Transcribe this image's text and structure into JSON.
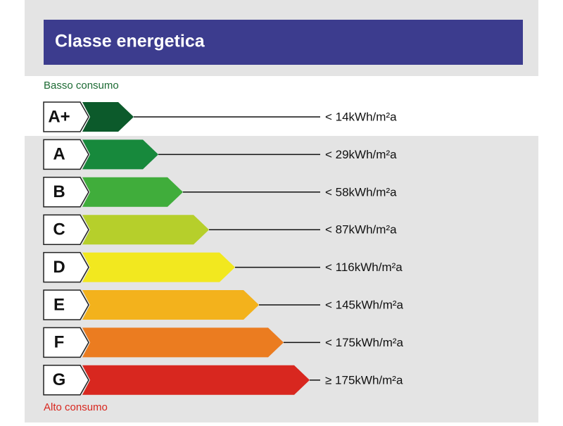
{
  "header": {
    "title": "Classe energetica"
  },
  "top_label": "Basso consumo",
  "bottom_label": "Alto consumo",
  "classes": [
    {
      "letter": "A+",
      "label": "< 14kWh/m²a",
      "color": "#0c5a2b"
    },
    {
      "letter": "A",
      "label": "< 29kWh/m²a",
      "color": "#17893c"
    },
    {
      "letter": "B",
      "label": "< 58kWh/m²a",
      "color": "#40ad3b"
    },
    {
      "letter": "C",
      "label": "< 87kWh/m²a",
      "color": "#b6cf2b"
    },
    {
      "letter": "D",
      "label": "< 116kWh/m²a",
      "color": "#f2e81f"
    },
    {
      "letter": "E",
      "label": "< 145kWh/m²a",
      "color": "#f3b21c"
    },
    {
      "letter": "F",
      "label": "< 175kWh/m²a",
      "color": "#eb7c20"
    },
    {
      "letter": "G",
      "label": "≥ 175kWh/m²a",
      "color": "#d8271f"
    }
  ]
}
